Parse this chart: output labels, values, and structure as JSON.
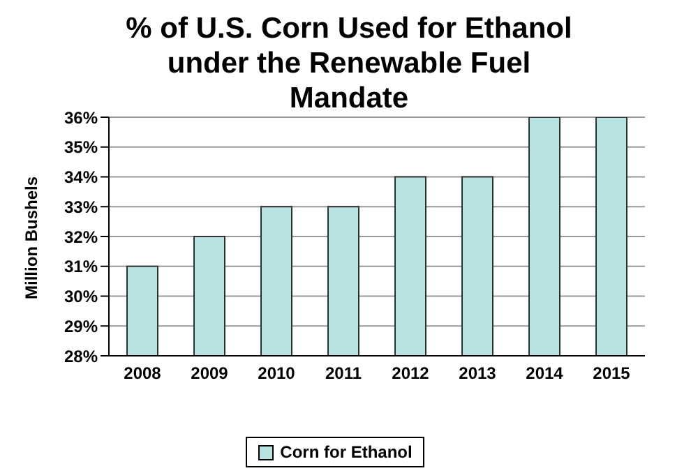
{
  "chart_data": {
    "type": "bar",
    "title": "% of U.S. Corn Used for Ethanol under the Renewable Fuel Mandate",
    "ylabel": "Million Bushels",
    "categories": [
      "2008",
      "2009",
      "2010",
      "2011",
      "2012",
      "2013",
      "2014",
      "2015"
    ],
    "series": [
      {
        "name": "Corn for Ethanol",
        "color": "#b9e2e2",
        "values": [
          31,
          32,
          33,
          33,
          34,
          34,
          36,
          36
        ]
      }
    ],
    "ylim": [
      28,
      36
    ],
    "yticks": [
      {
        "value": 28,
        "label": "28%"
      },
      {
        "value": 29,
        "label": "29%"
      },
      {
        "value": 30,
        "label": "30%"
      },
      {
        "value": 31,
        "label": "31%"
      },
      {
        "value": 32,
        "label": "32%"
      },
      {
        "value": 33,
        "label": "33%"
      },
      {
        "value": 34,
        "label": "34%"
      },
      {
        "value": 35,
        "label": "35%"
      },
      {
        "value": 36,
        "label": "36%"
      }
    ],
    "grid": "y",
    "legend": "bottom"
  }
}
